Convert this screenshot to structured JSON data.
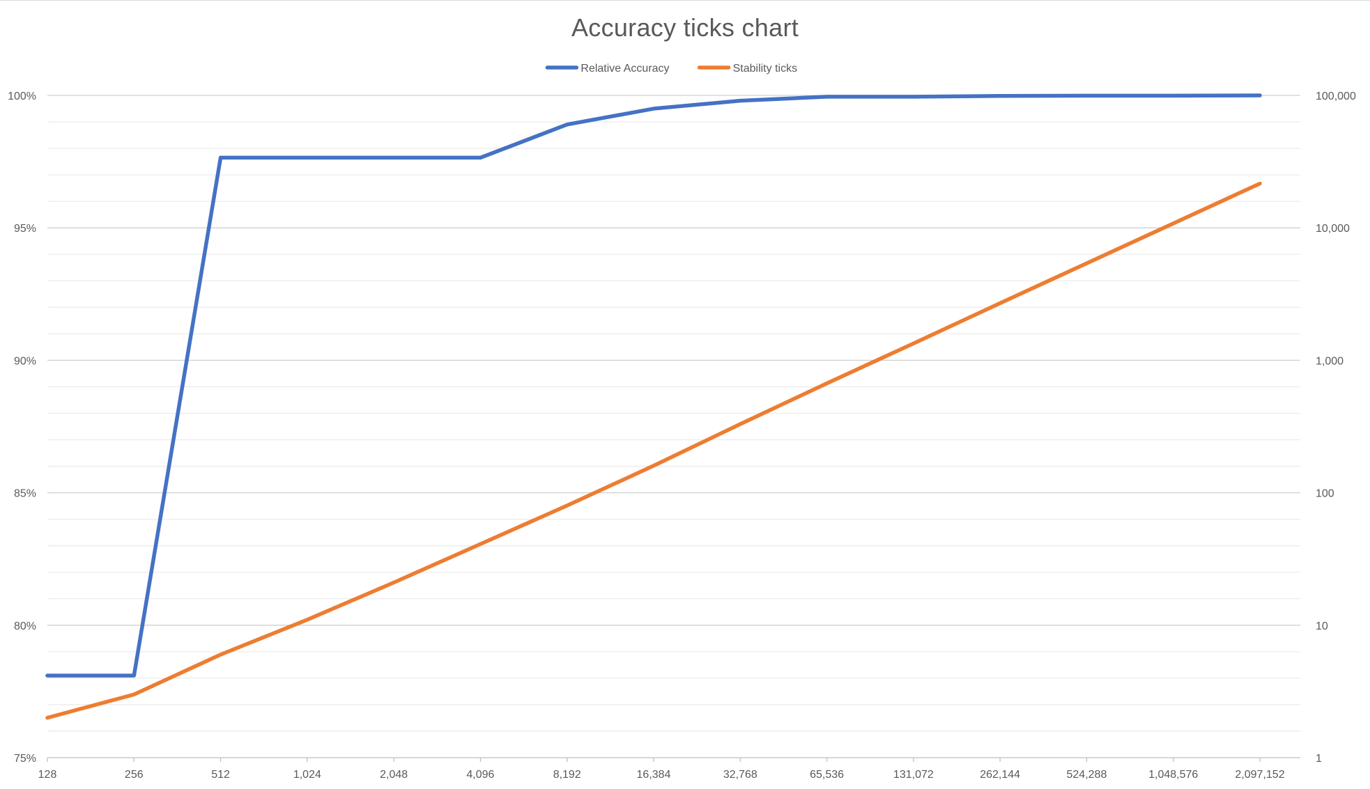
{
  "chart_data": {
    "type": "line",
    "title": "Accuracy ticks chart",
    "xlabel": "",
    "ylabel": "",
    "y2label": "",
    "categories": [
      "128",
      "256",
      "512",
      "1,024",
      "2,048",
      "4,096",
      "8,192",
      "16,384",
      "32,768",
      "65,536",
      "131,072",
      "262,144",
      "524,288",
      "1,048,576",
      "2,097,152"
    ],
    "series": [
      {
        "name": "Relative Accuracy",
        "axis": "left",
        "color": "#4472C4",
        "values": [
          0.781,
          0.781,
          0.9765,
          0.9765,
          0.9765,
          0.9765,
          0.989,
          0.995,
          0.998,
          0.9995,
          0.9995,
          0.9998,
          0.9999,
          0.9999,
          1.0
        ]
      },
      {
        "name": "Stability ticks",
        "axis": "right",
        "color": "#ED7D31",
        "values": [
          2,
          3,
          6,
          11,
          21,
          41,
          80,
          160,
          330,
          670,
          1340,
          2700,
          5400,
          10800,
          21600
        ]
      }
    ],
    "y_left": {
      "min": 0.75,
      "max": 1.0,
      "major_step": 0.05,
      "minor_step": 0.01,
      "tick_labels": [
        "75%",
        "80%",
        "85%",
        "90%",
        "95%",
        "100%"
      ],
      "format": "percent"
    },
    "y_right": {
      "scale": "log",
      "min": 1,
      "max": 100000,
      "tick_labels": [
        "1",
        "10",
        "100",
        "1,000",
        "10,000",
        "100,000"
      ]
    },
    "grid": true,
    "legend": {
      "position": "top",
      "entries": [
        "Relative Accuracy",
        "Stability ticks"
      ]
    }
  }
}
